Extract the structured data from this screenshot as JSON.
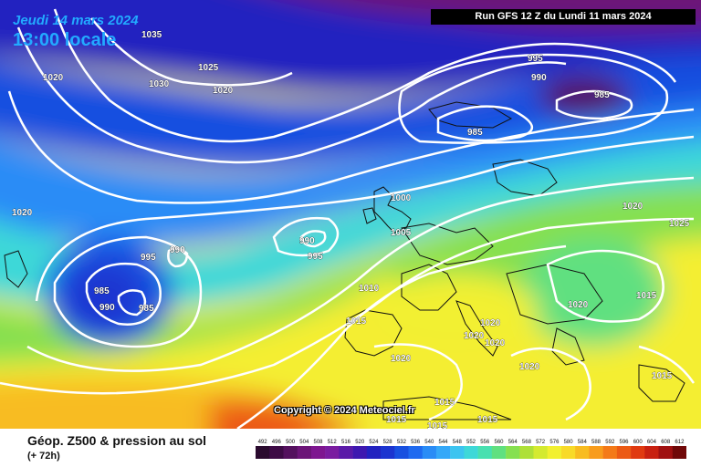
{
  "header": {
    "date_line": "Jeudi 14 mars 2024",
    "time_line": "13:00 locale",
    "run_info": "Run GFS 12 Z du Lundi 11 mars 2024"
  },
  "copyright": "Copyright © 2024 Meteociel.fr",
  "footer": {
    "title": "Géop. Z500 & pression au sol",
    "subtitle": "(+ 72h)"
  },
  "legend": {
    "values": [
      "492",
      "496",
      "500",
      "504",
      "508",
      "512",
      "516",
      "520",
      "524",
      "528",
      "532",
      "536",
      "540",
      "544",
      "548",
      "552",
      "556",
      "560",
      "564",
      "568",
      "572",
      "576",
      "580",
      "584",
      "588",
      "592",
      "596",
      "600",
      "604",
      "608",
      "612"
    ],
    "colors": [
      "#2a0a2e",
      "#3d0a45",
      "#54105e",
      "#6c1478",
      "#7e1690",
      "#7a1ca0",
      "#5a1aa8",
      "#3e18b0",
      "#2222c0",
      "#1b34d0",
      "#1850e0",
      "#1f6af0",
      "#2a8cf6",
      "#35a8f8",
      "#3cc4f0",
      "#3ed8d8",
      "#48e0b0",
      "#60e080",
      "#86e050",
      "#aee038",
      "#d4ea30",
      "#f2f030",
      "#f8da28",
      "#f8bc20",
      "#f89c1c",
      "#f47a18",
      "#ec5a14",
      "#e03a10",
      "#c82010",
      "#a01010",
      "#700808"
    ]
  },
  "isobars": [
    {
      "label": "1035"
    },
    {
      "label": "1030"
    },
    {
      "label": "1025"
    },
    {
      "label": "1020"
    },
    {
      "label": "1020"
    },
    {
      "label": "1020"
    },
    {
      "label": "995"
    },
    {
      "label": "990"
    },
    {
      "label": "985"
    },
    {
      "label": "985"
    },
    {
      "label": "1000"
    },
    {
      "label": "1005"
    },
    {
      "label": "990"
    },
    {
      "label": "995"
    },
    {
      "label": "990"
    },
    {
      "label": "995"
    },
    {
      "label": "985"
    },
    {
      "label": "990"
    },
    {
      "label": "985"
    },
    {
      "label": "1010"
    },
    {
      "label": "1015"
    },
    {
      "label": "1020"
    },
    {
      "label": "1020"
    },
    {
      "label": "1020"
    },
    {
      "label": "1020"
    },
    {
      "label": "1020"
    },
    {
      "label": "1020"
    },
    {
      "label": "1015"
    },
    {
      "label": "1015"
    },
    {
      "label": "1015"
    },
    {
      "label": "1015"
    },
    {
      "label": "1015"
    },
    {
      "label": "1015"
    },
    {
      "label": "1025"
    },
    {
      "label": "1020"
    }
  ]
}
